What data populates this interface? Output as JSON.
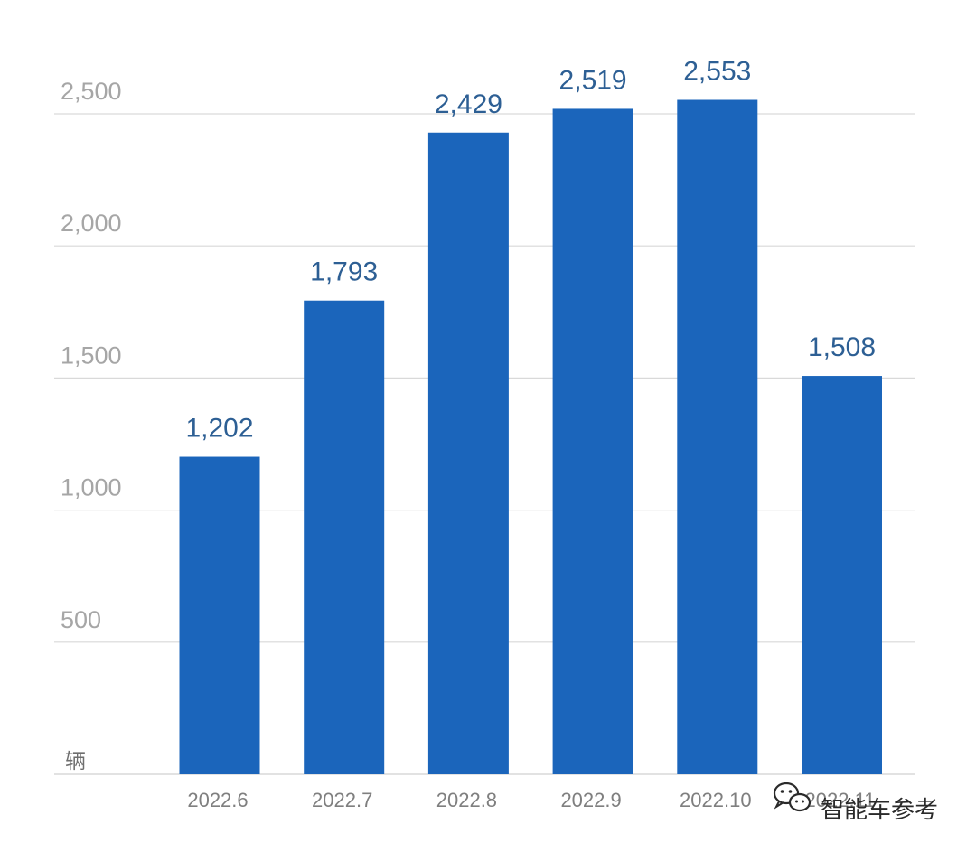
{
  "chart_data": {
    "type": "bar",
    "categories": [
      "2022.6",
      "2022.7",
      "2022.8",
      "2022.9",
      "2022.10",
      "2022.11"
    ],
    "values": [
      1202,
      1793,
      2429,
      2519,
      2553,
      1508
    ],
    "data_labels": [
      "1,202",
      "1,793",
      "2,429",
      "2,519",
      "2,553",
      "1,508"
    ],
    "y_ticks": [
      500,
      1000,
      1500,
      2000,
      2500
    ],
    "y_tick_labels": [
      "500",
      "1,000",
      "1,500",
      "2,000",
      "2,500"
    ],
    "ylim": [
      0,
      2500
    ],
    "unit_label": "辆",
    "grid": true,
    "legend": "none",
    "colors": {
      "bar": "#1b65bb",
      "data_label": "#2d5f94",
      "grid": "#d9d9d9"
    }
  },
  "watermark": {
    "text": "智能车参考",
    "icon": "wechat-icon"
  }
}
